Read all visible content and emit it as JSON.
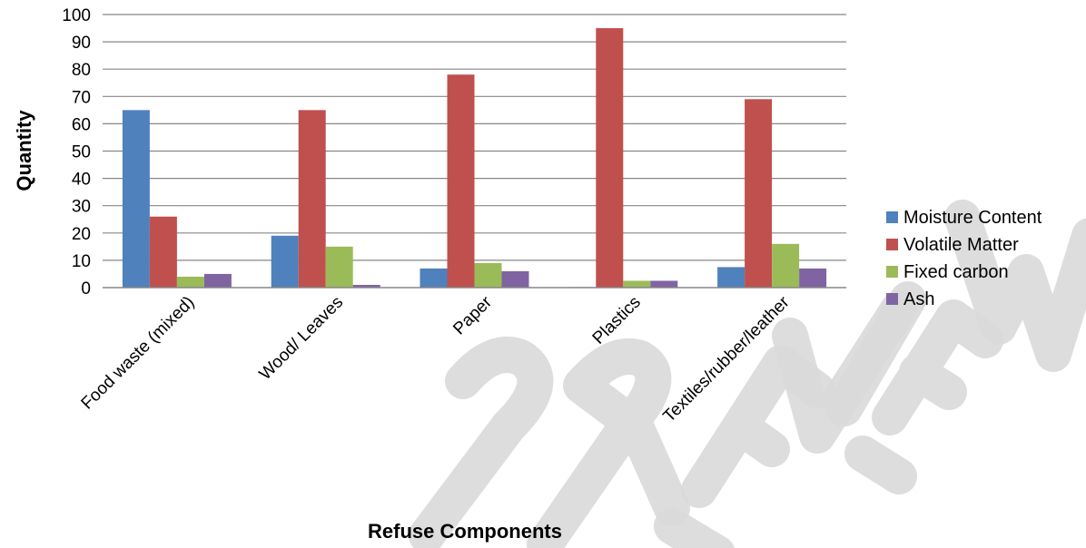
{
  "chart_data": {
    "type": "bar",
    "title": "",
    "xlabel": "Refuse Components",
    "ylabel": "Quantity",
    "ylim": [
      0,
      100
    ],
    "yticks": [
      0,
      10,
      20,
      30,
      40,
      50,
      60,
      70,
      80,
      90,
      100
    ],
    "grid": true,
    "legend_position": "right",
    "categories": [
      "Food waste (mixed)",
      "Wood/ Leaves",
      "Paper",
      "Plastics",
      "Textiles/rubber/leather"
    ],
    "series": [
      {
        "name": "Moisture Content",
        "color": "#4f81bd",
        "values": [
          65,
          19,
          7,
          0.2,
          7.5
        ]
      },
      {
        "name": "Volatile Matter",
        "color": "#c0504d",
        "values": [
          26,
          65,
          78,
          95,
          69
        ]
      },
      {
        "name": "Fixed carbon",
        "color": "#9bbb59",
        "values": [
          4,
          15,
          9,
          2.5,
          16
        ]
      },
      {
        "name": "Ash",
        "color": "#8064a2",
        "values": [
          5,
          1,
          6,
          2.5,
          7
        ]
      }
    ]
  },
  "watermark": {
    "text": "PREVIEW",
    "color": "#d9d9d9"
  }
}
